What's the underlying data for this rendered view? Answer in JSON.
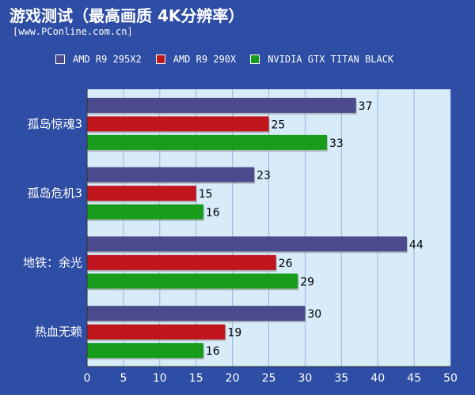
{
  "title": "游戏测试（最高画质 4K分辨率）",
  "source": "[www.PConline.com.cn]",
  "chart_data": {
    "type": "bar",
    "orientation": "horizontal",
    "categories": [
      "孤岛惊魂3",
      "孤岛危机3",
      "地铁：余光",
      "热血无赖"
    ],
    "series": [
      {
        "name": "AMD R9 295X2",
        "color": "#4b4a8c",
        "values": [
          37,
          23,
          44,
          30
        ]
      },
      {
        "name": "AMD R9 290X",
        "color": "#c0151d",
        "values": [
          25,
          15,
          26,
          19
        ]
      },
      {
        "name": "NVIDIA GTX TITAN BLACK",
        "color": "#189c1c",
        "values": [
          33,
          16,
          29,
          16
        ]
      }
    ],
    "xlim": [
      0,
      50
    ],
    "xticks": [
      0,
      5,
      10,
      15,
      20,
      25,
      30,
      35,
      40,
      45,
      50
    ],
    "grid": true,
    "legend_position": "top"
  }
}
